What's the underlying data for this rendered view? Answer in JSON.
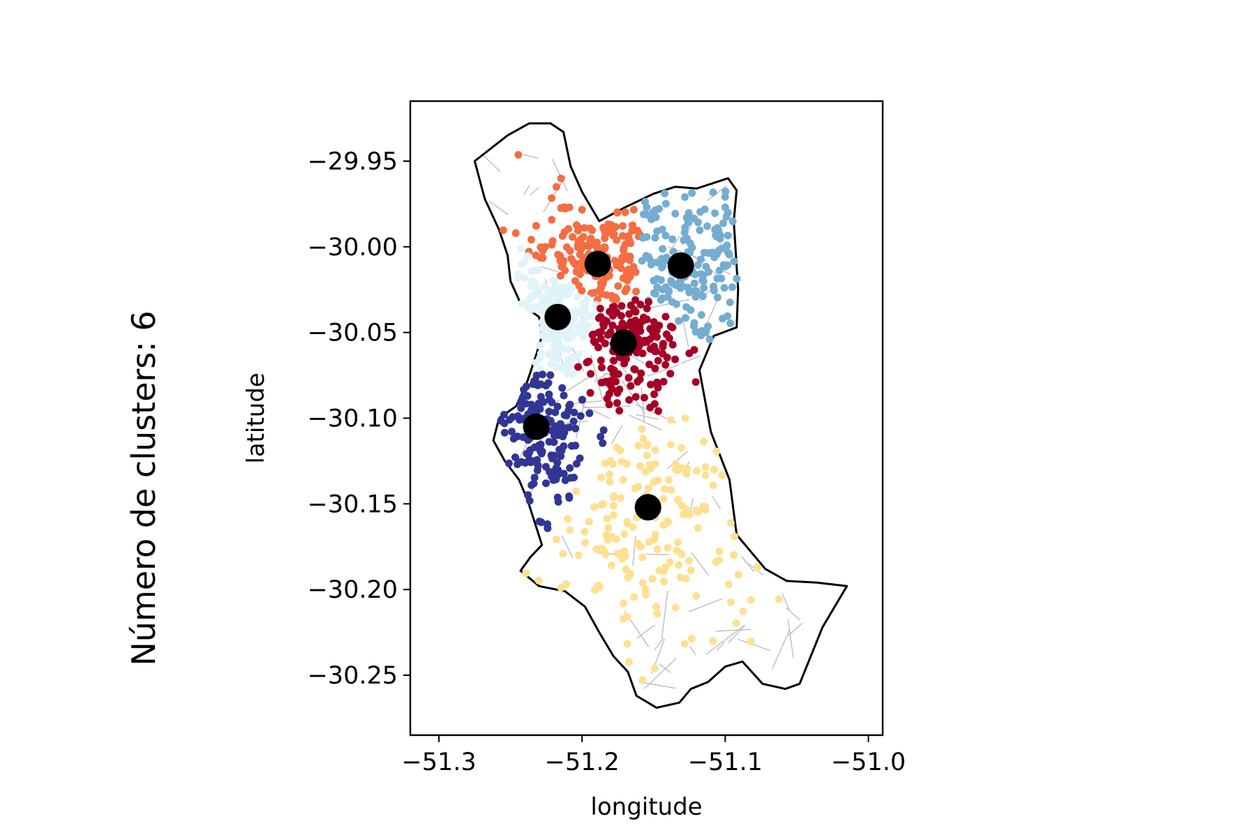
{
  "side_title": "Número de clusters: 6",
  "chart_data": {
    "type": "scatter",
    "title": "",
    "xlabel": "longitude",
    "ylabel": "latitude",
    "xlim": [
      -51.32,
      -50.99
    ],
    "ylim": [
      -30.285,
      -29.915
    ],
    "xticks": [
      -51.3,
      -51.2,
      -51.1,
      -51.0
    ],
    "xtick_labels": [
      "−51.3",
      "−51.2",
      "−51.1",
      "−51.0"
    ],
    "yticks": [
      -29.95,
      -30.0,
      -30.05,
      -30.1,
      -30.15,
      -30.2,
      -30.25
    ],
    "ytick_labels": [
      "−29.95",
      "−30.00",
      "−30.05",
      "−30.10",
      "−30.15",
      "−30.20",
      "−30.25"
    ],
    "grid": false,
    "legend": "none",
    "num_clusters": 6,
    "centroid_color": "#000000",
    "boundary_color": "#000000",
    "street_color": "#bdbdbd",
    "clusters": [
      {
        "color": "#f46d43",
        "centroid": [
          -51.189,
          -30.01
        ],
        "spread": [
          0.026,
          0.022
        ]
      },
      {
        "color": "#74add1",
        "centroid": [
          -51.131,
          -30.011
        ],
        "spread": [
          0.03,
          0.03
        ]
      },
      {
        "color": "#e0f3f8",
        "centroid": [
          -51.217,
          -30.041
        ],
        "spread": [
          0.018,
          0.026
        ]
      },
      {
        "color": "#a50026",
        "centroid": [
          -51.171,
          -30.056
        ],
        "spread": [
          0.022,
          0.02
        ]
      },
      {
        "color": "#313695",
        "centroid": [
          -51.232,
          -30.105
        ],
        "spread": [
          0.018,
          0.03
        ]
      },
      {
        "color": "#fee090",
        "centroid": [
          -51.154,
          -30.152
        ],
        "spread": [
          0.045,
          0.045
        ]
      }
    ],
    "boundary": [
      [
        -51.275,
        -29.95
      ],
      [
        -51.252,
        -29.935
      ],
      [
        -51.237,
        -29.928
      ],
      [
        -51.222,
        -29.928
      ],
      [
        -51.213,
        -29.933
      ],
      [
        -51.208,
        -29.953
      ],
      [
        -51.2,
        -29.968
      ],
      [
        -51.188,
        -29.985
      ],
      [
        -51.17,
        -29.977
      ],
      [
        -51.15,
        -29.969
      ],
      [
        -51.135,
        -29.965
      ],
      [
        -51.12,
        -29.966
      ],
      [
        -51.098,
        -29.96
      ],
      [
        -51.092,
        -29.967
      ],
      [
        -51.094,
        -29.985
      ],
      [
        -51.091,
        -30.025
      ],
      [
        -51.092,
        -30.047
      ],
      [
        -51.108,
        -30.052
      ],
      [
        -51.118,
        -30.072
      ],
      [
        -51.11,
        -30.108
      ],
      [
        -51.097,
        -30.136
      ],
      [
        -51.092,
        -30.168
      ],
      [
        -51.072,
        -30.188
      ],
      [
        -51.057,
        -30.195
      ],
      [
        -51.036,
        -30.196
      ],
      [
        -51.015,
        -30.198
      ],
      [
        -51.032,
        -30.222
      ],
      [
        -51.048,
        -30.255
      ],
      [
        -51.058,
        -30.258
      ],
      [
        -51.074,
        -30.255
      ],
      [
        -51.088,
        -30.242
      ],
      [
        -51.1,
        -30.245
      ],
      [
        -51.112,
        -30.254
      ],
      [
        -51.124,
        -30.258
      ],
      [
        -51.132,
        -30.266
      ],
      [
        -51.148,
        -30.269
      ],
      [
        -51.162,
        -30.262
      ],
      [
        -51.168,
        -30.248
      ],
      [
        -51.178,
        -30.239
      ],
      [
        -51.188,
        -30.225
      ],
      [
        -51.198,
        -30.21
      ],
      [
        -51.212,
        -30.201
      ],
      [
        -51.23,
        -30.198
      ],
      [
        -51.243,
        -30.189
      ],
      [
        -51.236,
        -30.181
      ],
      [
        -51.228,
        -30.174
      ],
      [
        -51.233,
        -30.161
      ],
      [
        -51.238,
        -30.148
      ],
      [
        -51.244,
        -30.136
      ],
      [
        -51.254,
        -30.125
      ],
      [
        -51.262,
        -30.113
      ],
      [
        -51.258,
        -30.1
      ],
      [
        -51.246,
        -30.093
      ],
      [
        -51.238,
        -30.078
      ],
      [
        -51.232,
        -30.063
      ],
      [
        -51.228,
        -30.052
      ],
      [
        -51.23,
        -30.041
      ],
      [
        -51.243,
        -30.033
      ],
      [
        -51.25,
        -30.02
      ],
      [
        -51.252,
        -30.005
      ],
      [
        -51.258,
        -29.99
      ],
      [
        -51.268,
        -29.972
      ]
    ]
  }
}
